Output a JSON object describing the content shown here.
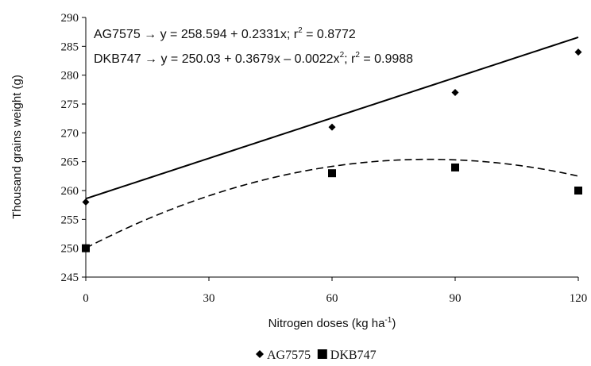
{
  "chart_data": {
    "type": "scatter",
    "x": [
      0,
      60,
      90,
      120
    ],
    "series": [
      {
        "name": "AG7575",
        "values": [
          258,
          271,
          277,
          284
        ],
        "marker": "diamond",
        "line": "solid",
        "fit": {
          "type": "linear",
          "coef": [
            258.594,
            0.2331
          ]
        }
      },
      {
        "name": "DKB747",
        "values": [
          250,
          263,
          264,
          260
        ],
        "marker": "square",
        "line": "dashed",
        "fit": {
          "type": "quadratic",
          "coef": [
            250.03,
            0.3679,
            -0.0022
          ]
        }
      }
    ],
    "xlabel": {
      "text": "Nitrogen doses (kg ha",
      "sup": "-1",
      "tail": ")"
    },
    "ylabel": "Thousand grains weight (g)",
    "xlim": [
      0,
      120
    ],
    "ylim": [
      245,
      290
    ],
    "xticks": [
      0,
      30,
      60,
      90,
      120
    ],
    "yticks": [
      245,
      250,
      255,
      260,
      265,
      270,
      275,
      280,
      285,
      290
    ],
    "grid": false,
    "legend_position": "bottom",
    "annotations": [
      {
        "parts": [
          {
            "t": "AG7575 → y = 258.594 + 0.2331x; r"
          },
          {
            "t": "2",
            "sup": true
          },
          {
            "t": " = 0.8772"
          }
        ]
      },
      {
        "parts": [
          {
            "t": "DKB747 → y = 250.03 + 0.3679x – 0.0022x"
          },
          {
            "t": "2",
            "sup": true
          },
          {
            "t": "; r"
          },
          {
            "t": "2",
            "sup": true
          },
          {
            "t": " = 0.9988"
          }
        ]
      }
    ],
    "colors": {
      "line": "#000000"
    }
  }
}
